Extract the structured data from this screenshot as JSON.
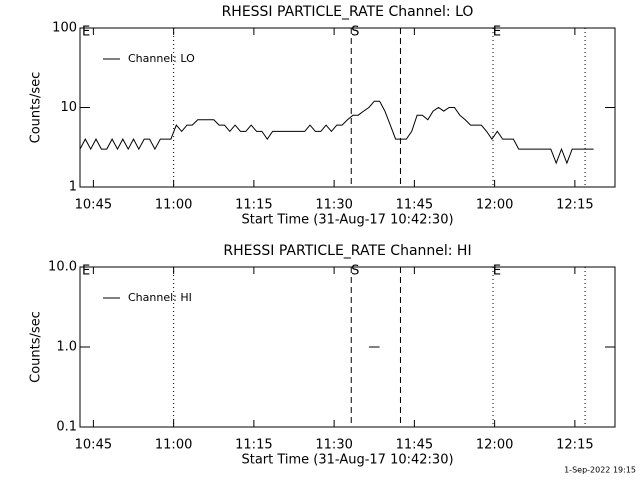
{
  "chart_data": [
    {
      "type": "line",
      "title": "RHESSI PARTICLE_RATE Channel: LO",
      "xlabel": "Start Time (31-Aug-17 10:42:30)",
      "ylabel": "Counts/sec",
      "xlim": [
        0,
        100
      ],
      "xticks": [
        {
          "value": 2.5,
          "label": "10:45"
        },
        {
          "value": 17.5,
          "label": "11:00"
        },
        {
          "value": 32.5,
          "label": "11:15"
        },
        {
          "value": 47.5,
          "label": "11:30"
        },
        {
          "value": 62.5,
          "label": "11:45"
        },
        {
          "value": 77.5,
          "label": "12:00"
        },
        {
          "value": 92.5,
          "label": "12:15"
        }
      ],
      "ylim": [
        1,
        100
      ],
      "yticks": [
        1,
        10,
        100
      ],
      "log_y": true,
      "legend": "upper left",
      "markers": [
        {
          "x": 0.4,
          "label": "E"
        },
        {
          "x": 17.5,
          "style": "dotted"
        },
        {
          "x": 50.7,
          "style": "dashed",
          "label": "S"
        },
        {
          "x": 59.9,
          "style": "dashed"
        },
        {
          "x": 77.2,
          "style": "dotted",
          "label": "E"
        },
        {
          "x": 94.4,
          "style": "dotted"
        }
      ],
      "x": [
        0,
        1,
        2,
        3,
        4,
        5,
        6,
        7,
        8,
        9,
        10,
        11,
        12,
        13,
        14,
        15,
        16,
        17,
        18,
        19,
        20,
        21,
        22,
        23,
        24,
        25,
        26,
        27,
        28,
        29,
        30,
        31,
        32,
        33,
        34,
        35,
        36,
        37,
        38,
        39,
        40,
        41,
        42,
        43,
        44,
        45,
        46,
        47,
        48,
        49,
        50,
        51,
        52,
        53,
        54,
        55,
        56,
        57,
        58,
        59,
        60,
        61,
        62,
        63,
        64,
        65,
        66,
        67,
        68,
        69,
        70,
        71,
        72,
        73,
        74,
        75,
        76,
        77,
        78,
        79,
        80,
        81,
        82,
        83,
        84,
        85,
        86,
        87,
        88,
        89,
        90,
        91,
        92,
        93,
        94,
        95,
        96
      ],
      "series": [
        {
          "name": "Channel: LO",
          "color": "#000000",
          "values": [
            3,
            4,
            3,
            4,
            3,
            3,
            4,
            3,
            4,
            3,
            4,
            3,
            4,
            4,
            3,
            4,
            4,
            4,
            6,
            5,
            6,
            6,
            7,
            7,
            7,
            7,
            6,
            6,
            5,
            6,
            5,
            5,
            6,
            5,
            5,
            4,
            5,
            5,
            5,
            5,
            5,
            5,
            5,
            6,
            5,
            5,
            6,
            5,
            6,
            6,
            7,
            8,
            8,
            9,
            10,
            12,
            12,
            9,
            6,
            4,
            4,
            4,
            5,
            8,
            8,
            7,
            9,
            10,
            9,
            10,
            10,
            8,
            7,
            6,
            6,
            6,
            5,
            4,
            5,
            4,
            4,
            4,
            3,
            3,
            3,
            3,
            3,
            3,
            3,
            2,
            3,
            2,
            3,
            3,
            3,
            3,
            3
          ]
        }
      ]
    },
    {
      "type": "line",
      "title": "RHESSI PARTICLE_RATE Channel: HI",
      "xlabel": "Start Time (31-Aug-17 10:42:30)",
      "ylabel": "Counts/sec",
      "xlim": [
        0,
        100
      ],
      "xticks": [
        {
          "value": 2.5,
          "label": "10:45"
        },
        {
          "value": 17.5,
          "label": "11:00"
        },
        {
          "value": 32.5,
          "label": "11:15"
        },
        {
          "value": 47.5,
          "label": "11:30"
        },
        {
          "value": 62.5,
          "label": "11:45"
        },
        {
          "value": 77.5,
          "label": "12:00"
        },
        {
          "value": 92.5,
          "label": "12:15"
        }
      ],
      "ylim": [
        0.1,
        10
      ],
      "yticks": [
        {
          "value": 0.1,
          "label": "0.1"
        },
        {
          "value": 1,
          "label": "1.0"
        },
        {
          "value": 10,
          "label": "10.0"
        }
      ],
      "log_y": true,
      "legend": "upper left",
      "markers": [
        {
          "x": 0.4,
          "label": "E"
        },
        {
          "x": 17.5,
          "style": "dotted"
        },
        {
          "x": 50.7,
          "style": "dashed",
          "label": "S"
        },
        {
          "x": 59.9,
          "style": "dashed"
        },
        {
          "x": 77.2,
          "style": "dotted",
          "label": "E"
        },
        {
          "x": 94.4,
          "style": "dotted"
        }
      ],
      "x": [
        54,
        56
      ],
      "series": [
        {
          "name": "Channel: HI",
          "color": "#000000",
          "values": [
            1,
            1
          ]
        }
      ]
    }
  ],
  "timestamp": "1-Sep-2022 19:15"
}
